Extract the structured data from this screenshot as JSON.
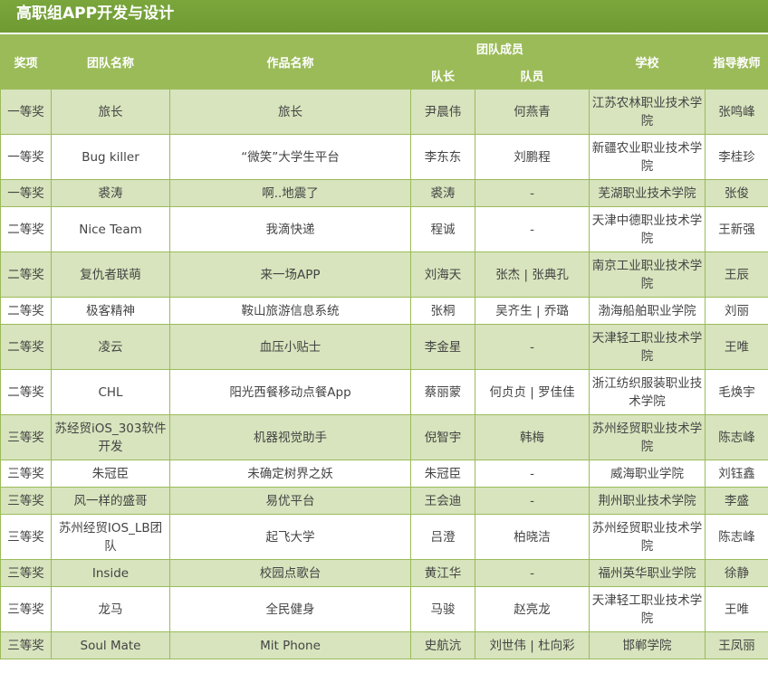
{
  "title": "高职组APP开发与设计",
  "headers": {
    "award": "奖项",
    "team": "团队名称",
    "work": "作品名称",
    "members": "团队成员",
    "leader": "队长",
    "member": "队员",
    "school": "学校",
    "teacher": "指导教师"
  },
  "colors": {
    "title_bg": "#739f36",
    "header_bg": "#9bbb59",
    "row_alt": "#d7e4bd",
    "border": "#9bbb59"
  },
  "rows": [
    {
      "award": "一等奖",
      "team": "旅长",
      "work": "旅长",
      "leader": "尹晨伟",
      "member": "何燕青",
      "school": "江苏农林职业技术学院",
      "teacher": "张鸣峰"
    },
    {
      "award": "一等奖",
      "team": "Bug killer",
      "work": "“微笑”大学生平台",
      "leader": "李东东",
      "member": "刘鹏程",
      "school": "新疆农业职业技术学院",
      "teacher": "李桂珍"
    },
    {
      "award": "一等奖",
      "team": "裘涛",
      "work": "啊..地震了",
      "leader": "裘涛",
      "member": "-",
      "school": "芜湖职业技术学院",
      "teacher": "张俊"
    },
    {
      "award": "二等奖",
      "team": "Nice Team",
      "work": "我滴快递",
      "leader": "程诚",
      "member": "-",
      "school": "天津中德职业技术学院",
      "teacher": "王新强"
    },
    {
      "award": "二等奖",
      "team": "复仇者联萌",
      "work": "来一场APP",
      "leader": "刘海天",
      "member": "张杰 | 张典孔",
      "school": "南京工业职业技术学院",
      "teacher": "王辰"
    },
    {
      "award": "二等奖",
      "team": "极客精神",
      "work": "鞍山旅游信息系统",
      "leader": "张桐",
      "member": "吴齐生 | 乔璐",
      "school": "渤海船舶职业学院",
      "teacher": "刘丽"
    },
    {
      "award": "二等奖",
      "team": "凌云",
      "work": "血压小贴士",
      "leader": "李金星",
      "member": "-",
      "school": "天津轻工职业技术学院",
      "teacher": "王唯"
    },
    {
      "award": "二等奖",
      "team": "CHL",
      "work": "阳光西餐移动点餐App",
      "leader": "蔡丽蒙",
      "member": "何贞贞 | 罗佳佳",
      "school": "浙江纺织服装职业技术学院",
      "teacher": "毛焕宇"
    },
    {
      "award": "三等奖",
      "team": "苏经贸iOS_303软件开发",
      "work": "机器视觉助手",
      "leader": "倪智宇",
      "member": "韩梅",
      "school": "苏州经贸职业技术学院",
      "teacher": "陈志峰"
    },
    {
      "award": "三等奖",
      "team": "朱冠臣",
      "work": "未确定树界之妖",
      "leader": "朱冠臣",
      "member": "-",
      "school": "威海职业学院",
      "teacher": "刘钰鑫"
    },
    {
      "award": "三等奖",
      "team": "风一样的盛哥",
      "work": "易优平台",
      "leader": "王会迪",
      "member": "-",
      "school": "荆州职业技术学院",
      "teacher": "李盛"
    },
    {
      "award": "三等奖",
      "team": "苏州经贸IOS_LB团队",
      "work": "起飞大学",
      "leader": "吕澄",
      "member": "柏晓洁",
      "school": "苏州经贸职业技术学院",
      "teacher": "陈志峰"
    },
    {
      "award": "三等奖",
      "team": "Inside",
      "work": "校园点歌台",
      "leader": "黄江华",
      "member": "-",
      "school": "福州英华职业学院",
      "teacher": "徐静"
    },
    {
      "award": "三等奖",
      "team": "龙马",
      "work": "全民健身",
      "leader": "马骏",
      "member": "赵亮龙",
      "school": "天津轻工职业技术学院",
      "teacher": "王唯"
    },
    {
      "award": "三等奖",
      "team": "Soul Mate",
      "work": "Mit Phone",
      "leader": "史航沆",
      "member": "刘世伟 | 杜向彩",
      "school": "邯郸学院",
      "teacher": "王凤丽"
    }
  ]
}
